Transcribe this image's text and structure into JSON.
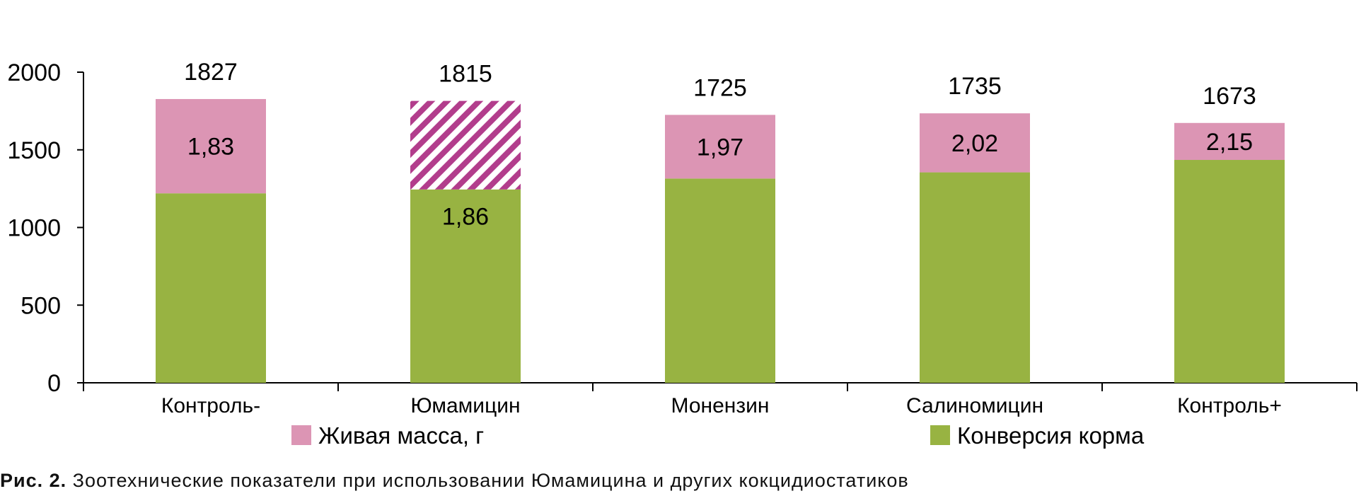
{
  "chart_data": {
    "type": "bar",
    "stacked": true,
    "categories": [
      "Контроль-",
      "Юмамицин",
      "Монензин",
      "Салиномицин",
      "Контроль+"
    ],
    "totals": [
      1827,
      1815,
      1725,
      1735,
      1673
    ],
    "totals_text": [
      "1827",
      "1815",
      "1725",
      "1735",
      "1673"
    ],
    "segment_split": [
      1220,
      1245,
      1315,
      1355,
      1435
    ],
    "conversion_text": [
      "1,83",
      "1,86",
      "1,97",
      "2,02",
      "2,15"
    ],
    "conversion": [
      1.83,
      1.86,
      1.97,
      2.02,
      2.15
    ],
    "series": [
      {
        "name": "Живая масса, г",
        "color": "#dc95b4",
        "hatched_index": 1,
        "hatch_color": "#b23d8c"
      },
      {
        "name": "Конверсия корма",
        "color": "#98b342"
      }
    ],
    "ylim": [
      0,
      2000
    ],
    "yticks": [
      0,
      500,
      1000,
      1500,
      2000
    ],
    "ytick_labels": [
      "0",
      "500",
      "1000",
      "1500",
      "2000"
    ],
    "grid": false,
    "legend_position": "bottom"
  },
  "caption": {
    "prefix": "Рис. 2.",
    "text": " Зоотехнические показатели при использовании Юмамицина и других кокцидиостатиков"
  }
}
